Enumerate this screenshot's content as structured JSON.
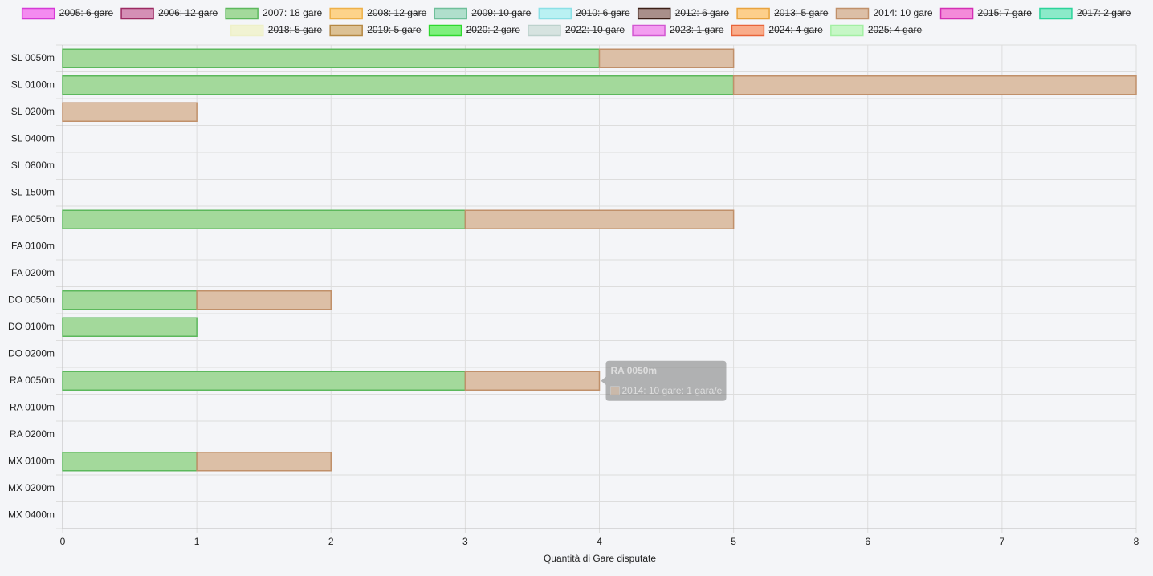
{
  "chart_data": {
    "type": "stacked-horizontal-bar",
    "categories": [
      "SL 0050m",
      "SL 0100m",
      "SL 0200m",
      "SL 0400m",
      "SL 0800m",
      "SL 1500m",
      "FA 0050m",
      "FA 0100m",
      "FA 0200m",
      "DO 0050m",
      "DO 0100m",
      "DO 0200m",
      "RA 0050m",
      "RA 0100m",
      "RA 0200m",
      "MX 0100m",
      "MX 0200m",
      "MX 0400m"
    ],
    "series": [
      {
        "name": "2005: 6 gare",
        "color": "#f48bf0",
        "border": "#d63ad6",
        "hidden": true
      },
      {
        "name": "2006: 12 gare",
        "color": "#d48fb5",
        "border": "#9c2a62",
        "hidden": true
      },
      {
        "name": "2007: 18 gare",
        "color": "#a3d99b",
        "border": "#5cb85c",
        "hidden": false,
        "values": [
          4,
          5,
          0,
          0,
          0,
          0,
          3,
          0,
          0,
          1,
          1,
          0,
          3,
          0,
          0,
          1,
          0,
          0
        ]
      },
      {
        "name": "2008: 12 gare",
        "color": "#fdd38a",
        "border": "#eeb048",
        "hidden": true
      },
      {
        "name": "2009: 10 gare",
        "color": "#b0dfcc",
        "border": "#6fbf9a",
        "hidden": true
      },
      {
        "name": "2010: 6 gare",
        "color": "#b9f1f3",
        "border": "#8be0e6",
        "hidden": true
      },
      {
        "name": "2012: 6 gare",
        "color": "#a98f8a",
        "border": "#3b1f17",
        "hidden": true
      },
      {
        "name": "2013: 5 gare",
        "color": "#fdcf8b",
        "border": "#e8a33e",
        "hidden": true
      },
      {
        "name": "2014: 10 gare",
        "color": "#dcbfa6",
        "border": "#c0906a",
        "hidden": false,
        "values": [
          1,
          3,
          1,
          0,
          0,
          0,
          2,
          0,
          0,
          1,
          0,
          0,
          1,
          0,
          0,
          1,
          0,
          0
        ]
      },
      {
        "name": "2015: 7 gare",
        "color": "#f48ad9",
        "border": "#d42fb4",
        "hidden": true
      },
      {
        "name": "2017: 2 gare",
        "color": "#8beac9",
        "border": "#2bd49a",
        "hidden": true
      },
      {
        "name": "2018: 5 gare",
        "color": "#f1f3d2",
        "border": "#eef0c8",
        "hidden": true
      },
      {
        "name": "2019: 5 gare",
        "color": "#dcc194",
        "border": "#b58843",
        "hidden": true
      },
      {
        "name": "2020: 2 gare",
        "color": "#7df07d",
        "border": "#2ed82e",
        "hidden": true
      },
      {
        "name": "2022: 10 gare",
        "color": "#d6e3e0",
        "border": "#bcd1cc",
        "hidden": true
      },
      {
        "name": "2023: 1 gare",
        "color": "#f39df0",
        "border": "#d257d2",
        "hidden": true
      },
      {
        "name": "2024: 4 gare",
        "color": "#f9ac8a",
        "border": "#e8643a",
        "hidden": true
      },
      {
        "name": "2025: 4 gare",
        "color": "#c6f7c6",
        "border": "#a3efa3",
        "hidden": true
      }
    ],
    "xlim": [
      0,
      8
    ],
    "xticks": [
      0,
      1,
      2,
      3,
      4,
      5,
      6,
      7,
      8
    ],
    "grid": true,
    "xlabel": "Quantità di Gare disputate",
    "tooltip": {
      "title": "RA 0050m",
      "text": "2014: 10 gare: 1 gara/e",
      "category": 12,
      "series": 8
    }
  }
}
